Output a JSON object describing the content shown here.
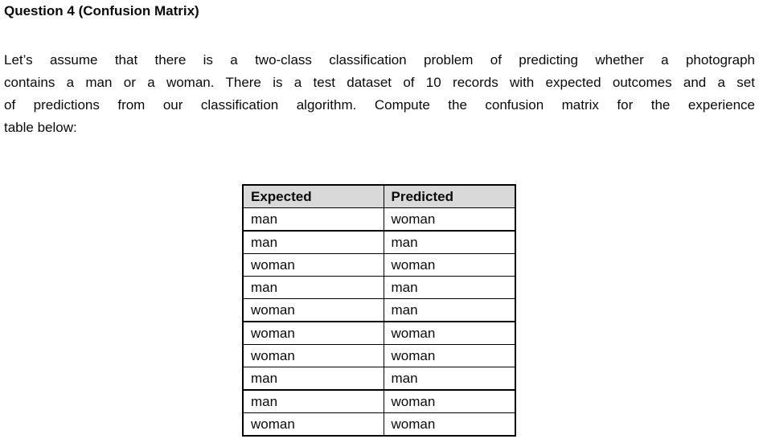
{
  "page": {
    "title": "Question 4 (Confusion Matrix)"
  },
  "intro": {
    "lines": [
      "Let’s assume that there is a two-class classification problem of predicting whether a photograph",
      "contains a man or a woman. There is a test dataset of 10 records with expected outcomes and a set",
      "of predictions from our classification algorithm. Compute the confusion matrix for the experience",
      "table below:"
    ]
  },
  "table": {
    "headers": [
      "Expected",
      "Predicted"
    ],
    "rows": [
      {
        "expected": "man",
        "predicted": "woman"
      },
      {
        "expected": "man",
        "predicted": "man"
      },
      {
        "expected": "woman",
        "predicted": "woman"
      },
      {
        "expected": "man",
        "predicted": "man"
      },
      {
        "expected": "woman",
        "predicted": "man"
      },
      {
        "expected": "woman",
        "predicted": "woman"
      },
      {
        "expected": "woman",
        "predicted": "woman"
      },
      {
        "expected": "man",
        "predicted": "man"
      },
      {
        "expected": "man",
        "predicted": "woman"
      },
      {
        "expected": "woman",
        "predicted": "woman"
      }
    ]
  },
  "colors": {
    "header_bg": "#d9d9d9",
    "border": "#000000",
    "text": "#0a0a0a",
    "background": "#ffffff"
  }
}
